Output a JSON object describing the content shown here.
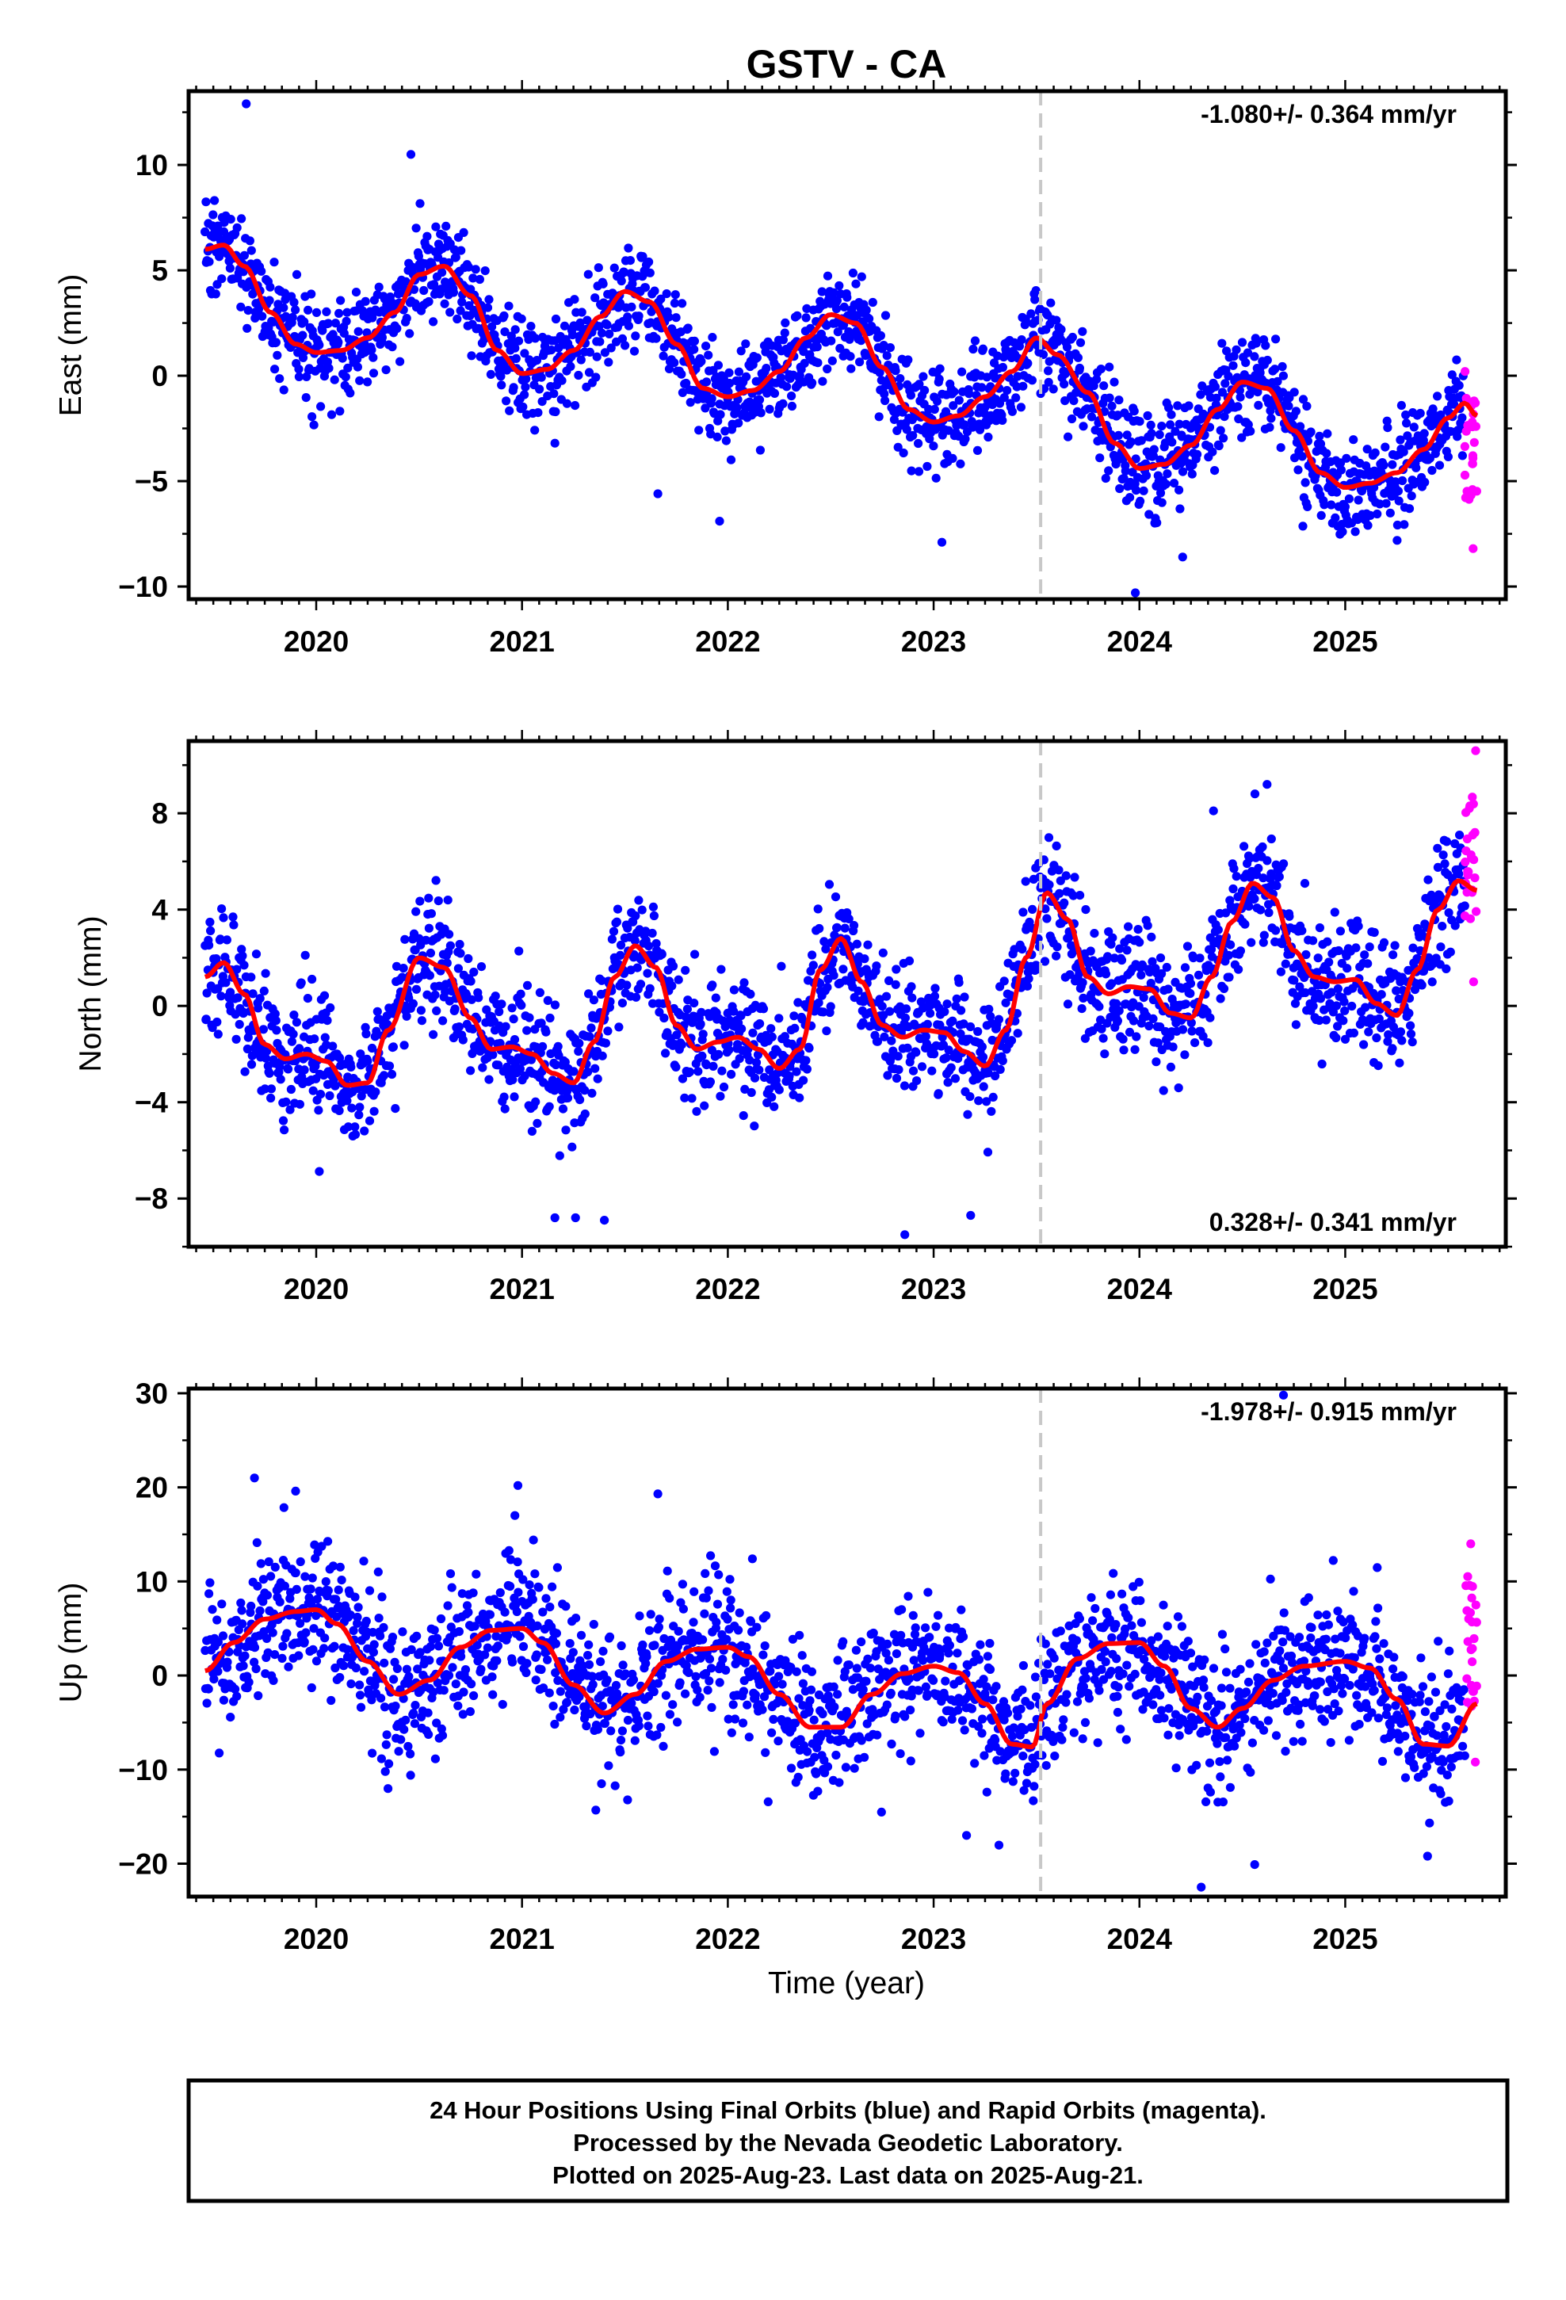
{
  "footer": {
    "line1": "24 Hour Positions Using Final Orbits (blue) and Rapid Orbits (magenta).",
    "line2": "Processed by the Nevada Geodetic Laboratory.",
    "line3": "Plotted on 2025-Aug-23. Last data on 2025-Aug-21."
  },
  "colors": {
    "final_orbits": "#0000ff",
    "rapid_orbits": "#ff00ff",
    "model": "#ff0000",
    "event_line": "#c8c8c8",
    "frame": "#000000"
  },
  "chart_data": [
    {
      "type": "scatter",
      "title": "GSTV - CA",
      "ylabel": "East (mm)",
      "xlabel": "",
      "xlim": [
        2019.38,
        2025.78
      ],
      "ylim": [
        -10.6,
        13.5
      ],
      "yticks": [
        -10,
        -5,
        0,
        5,
        10
      ],
      "xticks": [
        2020,
        2021,
        2022,
        2023,
        2024,
        2025
      ],
      "grid": false,
      "rate_label": "-1.080+/- 0.364 mm/yr",
      "rate_position": "top-right",
      "event_line_x": 2023.52,
      "series": [
        {
          "name": "Final Orbits (blue)",
          "style": "points",
          "x_start": 2019.46,
          "x_end": 2025.58,
          "annual_amplitude": 2.4,
          "annual_phase": 1.1,
          "noise_sd": 1.2,
          "trend_knots": [
            [
              2019.46,
              6
            ],
            [
              2020.0,
              2.5
            ],
            [
              2020.5,
              3.5
            ],
            [
              2021.0,
              1.0
            ],
            [
              2021.5,
              2.8
            ],
            [
              2022.0,
              -0.3
            ],
            [
              2022.5,
              1.5
            ],
            [
              2023.0,
              -1.0
            ],
            [
              2023.5,
              0.8
            ],
            [
              2024.0,
              -3.5
            ],
            [
              2024.5,
              -1.5
            ],
            [
              2025.0,
              -4.5
            ],
            [
              2025.58,
              0.8
            ]
          ],
          "outliers": [
            [
              2019.66,
              12.9
            ],
            [
              2020.46,
              10.5
            ],
            [
              2021.16,
              -3.2
            ],
            [
              2021.66,
              -5.6
            ],
            [
              2021.96,
              -6.9
            ],
            [
              2023.04,
              -7.9
            ],
            [
              2023.98,
              -10.3
            ],
            [
              2024.21,
              -8.6
            ]
          ]
        },
        {
          "name": "Rapid Orbits (magenta)",
          "style": "points",
          "x_start": 2025.58,
          "x_end": 2025.64,
          "y_range": [
            -8.2,
            0.2
          ]
        },
        {
          "name": "Model fit",
          "style": "line",
          "x": [
            2019.46,
            2019.55,
            2019.65,
            2019.78,
            2019.9,
            2020.0,
            2020.12,
            2020.25,
            2020.38,
            2020.5,
            2020.62,
            2020.75,
            2020.88,
            2021.0,
            2021.12,
            2021.25,
            2021.38,
            2021.5,
            2021.62,
            2021.75,
            2021.88,
            2022.0,
            2022.12,
            2022.25,
            2022.38,
            2022.5,
            2022.62,
            2022.75,
            2022.88,
            2023.0,
            2023.12,
            2023.25,
            2023.38,
            2023.5,
            2023.6,
            2023.75,
            2023.88,
            2024.0,
            2024.12,
            2024.25,
            2024.38,
            2024.5,
            2024.62,
            2024.75,
            2024.88,
            2025.0,
            2025.12,
            2025.25,
            2025.38,
            2025.5,
            2025.58,
            2025.64
          ],
          "y": [
            6.0,
            6.2,
            5.2,
            3.0,
            1.5,
            1.1,
            1.2,
            1.8,
            3.0,
            4.8,
            5.2,
            3.8,
            1.2,
            0.1,
            0.3,
            1.2,
            2.8,
            4.0,
            3.5,
            1.5,
            -0.6,
            -1.0,
            -0.7,
            0.2,
            1.8,
            2.9,
            2.5,
            0.4,
            -1.6,
            -2.2,
            -1.9,
            -1.0,
            0.2,
            1.8,
            1.0,
            -0.8,
            -3.2,
            -4.4,
            -4.2,
            -3.3,
            -1.6,
            -0.3,
            -0.6,
            -2.6,
            -4.6,
            -5.3,
            -5.1,
            -4.6,
            -3.5,
            -2.0,
            -1.3,
            -1.9
          ]
        }
      ]
    },
    {
      "type": "scatter",
      "ylabel": "North (mm)",
      "xlabel": "",
      "xlim": [
        2019.38,
        2025.78
      ],
      "ylim": [
        -10.0,
        11.0
      ],
      "yticks": [
        -8,
        -4,
        0,
        4,
        8
      ],
      "xticks": [
        2020,
        2021,
        2022,
        2023,
        2024,
        2025
      ],
      "grid": false,
      "rate_label": "0.328+/- 0.341 mm/yr",
      "rate_position": "bottom-right",
      "event_line_x": 2023.52,
      "series": [
        {
          "name": "Final Orbits (blue)",
          "style": "points",
          "x_start": 2019.46,
          "x_end": 2025.58,
          "annual_amplitude": 2.8,
          "annual_phase": 0.9,
          "noise_sd": 1.3,
          "trend_knots": [
            [
              2019.46,
              0.5
            ],
            [
              2020.0,
              -1.0
            ],
            [
              2020.5,
              -0.5
            ],
            [
              2021.0,
              -1.0
            ],
            [
              2021.5,
              -0.5
            ],
            [
              2022.0,
              -0.3
            ],
            [
              2022.5,
              0.0
            ],
            [
              2023.0,
              -0.5
            ],
            [
              2023.5,
              1.5
            ],
            [
              2024.0,
              1.0
            ],
            [
              2024.5,
              2.5
            ],
            [
              2025.0,
              1.0
            ],
            [
              2025.58,
              2.8
            ]
          ],
          "outliers": [
            [
              2021.16,
              -8.8
            ],
            [
              2021.26,
              -8.8
            ],
            [
              2021.4,
              -8.9
            ],
            [
              2022.86,
              -9.5
            ],
            [
              2023.18,
              -8.7
            ],
            [
              2024.36,
              8.1
            ],
            [
              2024.62,
              9.2
            ]
          ]
        },
        {
          "name": "Rapid Orbits (magenta)",
          "style": "points",
          "x_start": 2025.58,
          "x_end": 2025.64,
          "y_range": [
            1.0,
            10.6
          ]
        },
        {
          "name": "Model fit",
          "style": "line",
          "x": [
            2019.46,
            2019.55,
            2019.65,
            2019.75,
            2019.85,
            2019.95,
            2020.05,
            2020.15,
            2020.25,
            2020.35,
            2020.5,
            2020.62,
            2020.75,
            2020.85,
            2020.95,
            2021.05,
            2021.15,
            2021.25,
            2021.35,
            2021.45,
            2021.55,
            2021.65,
            2021.75,
            2021.85,
            2021.95,
            2022.05,
            2022.15,
            2022.25,
            2022.35,
            2022.45,
            2022.55,
            2022.65,
            2022.75,
            2022.85,
            2022.95,
            2023.05,
            2023.15,
            2023.25,
            2023.35,
            2023.45,
            2023.55,
            2023.65,
            2023.75,
            2023.85,
            2023.95,
            2024.05,
            2024.15,
            2024.25,
            2024.35,
            2024.45,
            2024.55,
            2024.65,
            2024.75,
            2024.85,
            2024.95,
            2025.05,
            2025.15,
            2025.25,
            2025.35,
            2025.45,
            2025.55,
            2025.64
          ],
          "y": [
            1.2,
            1.8,
            0.5,
            -1.6,
            -2.2,
            -2.0,
            -2.3,
            -3.3,
            -3.2,
            -1.0,
            2.0,
            1.6,
            -0.5,
            -1.8,
            -1.7,
            -2.0,
            -2.8,
            -3.2,
            -1.5,
            1.2,
            2.5,
            1.6,
            -0.8,
            -1.8,
            -1.5,
            -1.3,
            -1.8,
            -2.6,
            -1.8,
            1.5,
            2.8,
            1.0,
            -0.8,
            -1.3,
            -1.0,
            -1.1,
            -1.9,
            -2.5,
            -1.0,
            2.0,
            4.7,
            3.6,
            1.2,
            0.5,
            0.8,
            0.7,
            -0.3,
            -0.5,
            1.2,
            3.5,
            5.1,
            4.5,
            2.3,
            1.2,
            1.0,
            1.1,
            0.1,
            -0.4,
            1.5,
            4.0,
            5.2,
            4.8
          ]
        }
      ]
    },
    {
      "type": "scatter",
      "ylabel": "Up (mm)",
      "xlabel": "Time (year)",
      "xlim": [
        2019.38,
        2025.78
      ],
      "ylim": [
        -23.5,
        30.5
      ],
      "yticks": [
        -20,
        -10,
        0,
        10,
        20,
        30
      ],
      "xticks": [
        2020,
        2021,
        2022,
        2023,
        2024,
        2025
      ],
      "grid": false,
      "rate_label": "-1.978+/- 0.915 mm/yr",
      "rate_position": "top-right",
      "event_line_x": 2023.52,
      "series": [
        {
          "name": "Final Orbits (blue)",
          "style": "points",
          "x_start": 2019.46,
          "x_end": 2025.58,
          "annual_amplitude": 4.8,
          "annual_phase": -0.2,
          "noise_sd": 3.8,
          "trend_knots": [
            [
              2019.46,
              1.5
            ],
            [
              2025.58,
              -4.0
            ]
          ],
          "outliers": [
            [
              2019.7,
              21.0
            ],
            [
              2019.9,
              19.6
            ],
            [
              2020.98,
              20.2
            ],
            [
              2021.66,
              19.3
            ],
            [
              2023.16,
              -17.0
            ],
            [
              2024.3,
              -22.5
            ],
            [
              2024.56,
              -20.1
            ],
            [
              2025.4,
              -19.2
            ],
            [
              2024.7,
              29.8
            ]
          ]
        },
        {
          "name": "Rapid Orbits (magenta)",
          "style": "points",
          "x_start": 2025.58,
          "x_end": 2025.64,
          "y_range": [
            -9.2,
            14.0
          ]
        },
        {
          "name": "Model fit",
          "style": "line",
          "x": [
            2019.46,
            2019.6,
            2019.75,
            2019.9,
            2020.0,
            2020.1,
            2020.25,
            2020.4,
            2020.55,
            2020.7,
            2020.85,
            2021.0,
            2021.1,
            2021.25,
            2021.4,
            2021.55,
            2021.7,
            2021.85,
            2022.0,
            2022.1,
            2022.25,
            2022.4,
            2022.55,
            2022.7,
            2022.85,
            2023.0,
            2023.12,
            2023.25,
            2023.38,
            2023.48,
            2023.55,
            2023.7,
            2023.85,
            2024.0,
            2024.12,
            2024.25,
            2024.38,
            2024.5,
            2024.65,
            2024.8,
            2025.0,
            2025.12,
            2025.25,
            2025.38,
            2025.5,
            2025.64
          ],
          "y": [
            0.5,
            3.5,
            6.0,
            6.8,
            7.0,
            5.5,
            1.5,
            -2.0,
            -0.5,
            3.0,
            4.8,
            5.0,
            3.5,
            -1.0,
            -4.0,
            -2.0,
            1.5,
            2.8,
            3.0,
            2.0,
            -2.0,
            -5.5,
            -5.5,
            -2.0,
            0.2,
            1.0,
            0.3,
            -3.0,
            -7.3,
            -7.6,
            -3.0,
            1.8,
            3.4,
            3.5,
            1.0,
            -3.5,
            -5.5,
            -3.5,
            -0.5,
            1.0,
            1.5,
            0.8,
            -2.5,
            -7.3,
            -7.5,
            -3.0
          ]
        }
      ]
    }
  ]
}
